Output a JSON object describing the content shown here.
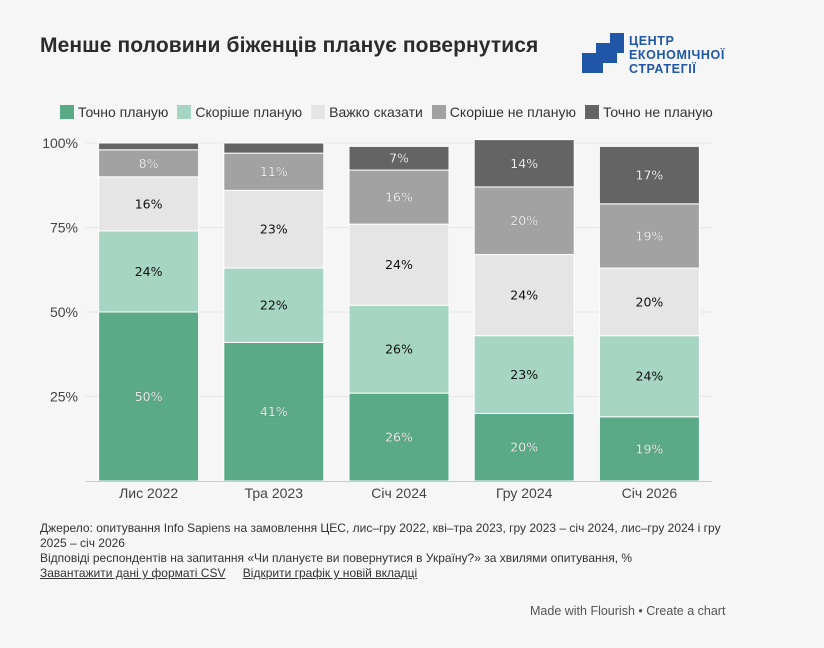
{
  "title": "Менше половини біженців планує повернутися",
  "logo": {
    "line1": "ЦЕНТР",
    "line2": "ЕКОНОМІЧНОЇ",
    "line3": "СТРАТЕГІЇ",
    "color": "#1f56a8"
  },
  "chart_data": {
    "type": "bar",
    "stacked": true,
    "title": "Менше половини біженців планує повернутися",
    "categories": [
      "Лис 2022",
      "Тра 2023",
      "Січ 2024",
      "Гру 2024",
      "Січ 2026"
    ],
    "series": [
      {
        "name": "Точно планую",
        "color": "#5aaa88",
        "label_color": "#ffffff",
        "values": [
          50,
          41,
          26,
          20,
          19
        ]
      },
      {
        "name": "Скоріше планую",
        "color": "#a6d5c4",
        "label_color": "#111111",
        "values": [
          24,
          22,
          26,
          23,
          24
        ]
      },
      {
        "name": "Важко сказати",
        "color": "#e5e5e5",
        "label_color": "#111111",
        "values": [
          16,
          23,
          24,
          24,
          20
        ]
      },
      {
        "name": "Скоріше не планую",
        "color": "#a2a2a2",
        "label_color": "#ffffff",
        "values": [
          8,
          11,
          16,
          20,
          19
        ]
      },
      {
        "name": "Точно не планую",
        "color": "#646464",
        "label_color": "#ffffff",
        "values": [
          2,
          3,
          7,
          14,
          17
        ]
      }
    ],
    "labels_hidden_below": 5,
    "y_ticks": [
      "25%",
      "50%",
      "75%",
      "100%"
    ],
    "y_tick_values": [
      25,
      50,
      75,
      100
    ],
    "ylim": [
      0,
      100
    ],
    "grid": true,
    "legend": "top"
  },
  "footer": {
    "source": "Джерело: опитування Info Sapiens на замовлення ЦЕС, лис–гру 2022, кві–тра 2023, гру 2023 – січ 2024, лис–гру 2024 і гру 2025 – січ 2026",
    "note": "Відповіді респондентів на запитання «Чи плануєте ви повернутися в Україну?» за хвилями опитування, %",
    "link_csv": "Завантажити дані у форматі CSV",
    "link_open": "Відкрити графік у новій вкладці"
  },
  "credit": "Made with Flourish • Create a chart"
}
